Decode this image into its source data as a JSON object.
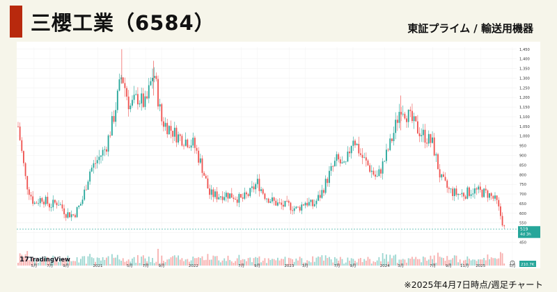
{
  "header": {
    "title": "三櫻工業（6584）",
    "market": "東証プライム / 輸送用機器",
    "accent_color": "#b8290d"
  },
  "footnote": "※2025年4月7日時点/週足チャート",
  "watermark": "TradingView",
  "colors": {
    "up": "#26a69a",
    "down": "#ef5350",
    "background": "#f6f5ea"
  },
  "chart_data": {
    "type": "candlestick",
    "interval": "weekly",
    "ylim": [
      430,
      1460
    ],
    "y_ticks": [
      450,
      500,
      550,
      600,
      650,
      700,
      750,
      800,
      850,
      900,
      950,
      1000,
      1050,
      1100,
      1150,
      1200,
      1250,
      1300,
      1350,
      1400,
      1450
    ],
    "y_tick_labels": [
      "450",
      "500",
      "550",
      "600",
      "650",
      "700",
      "750",
      "800",
      "850",
      "900",
      "950",
      "1,000",
      "1,050",
      "1,100",
      "1,150",
      "1,200",
      "1,250",
      "1,300",
      "1,350",
      "1,400",
      "1,450"
    ],
    "x_labels": [
      {
        "label": "5月",
        "x": "2020-05"
      },
      {
        "label": "7月",
        "x": "2020-07"
      },
      {
        "label": "9月",
        "x": "2020-09"
      },
      {
        "label": "2021",
        "x": "2021-01"
      },
      {
        "label": "5月",
        "x": "2021-05"
      },
      {
        "label": "7月",
        "x": "2021-07"
      },
      {
        "label": "9月",
        "x": "2021-09"
      },
      {
        "label": "2022",
        "x": "2022-01"
      },
      {
        "label": "7月",
        "x": "2022-07"
      },
      {
        "label": "9月",
        "x": "2022-09"
      },
      {
        "label": "2023",
        "x": "2023-01"
      },
      {
        "label": "3月",
        "x": "2023-03"
      },
      {
        "label": "7月",
        "x": "2023-07"
      },
      {
        "label": "9月",
        "x": "2023-09"
      },
      {
        "label": "2024",
        "x": "2024-01"
      },
      {
        "label": "3月",
        "x": "2024-03"
      },
      {
        "label": "7月",
        "x": "2024-07"
      },
      {
        "label": "9月",
        "x": "2024-09"
      },
      {
        "label": "11月",
        "x": "2024-11"
      },
      {
        "label": "2025",
        "x": "2025-01"
      },
      {
        "label": "5月",
        "x": "2025-05"
      }
    ],
    "x_start": "2020-03",
    "x_end": "2025-05",
    "path": [
      [
        "2020-03",
        1050
      ],
      [
        "2020-04",
        760
      ],
      [
        "2020-05",
        650
      ],
      [
        "2020-06",
        680
      ],
      [
        "2020-07",
        640
      ],
      [
        "2020-08",
        660
      ],
      [
        "2020-09",
        600
      ],
      [
        "2020-10",
        590
      ],
      [
        "2020-11",
        660
      ],
      [
        "2020-12",
        820
      ],
      [
        "2021-01",
        880
      ],
      [
        "2021-02",
        940
      ],
      [
        "2021-03",
        1100
      ],
      [
        "2021-04",
        1320
      ],
      [
        "2021-05",
        1150
      ],
      [
        "2021-06",
        1200
      ],
      [
        "2021-07",
        1160
      ],
      [
        "2021-08",
        1340
      ],
      [
        "2021-09",
        1080
      ],
      [
        "2021-10",
        1040
      ],
      [
        "2021-11",
        1000
      ],
      [
        "2021-12",
        980
      ],
      [
        "2022-01",
        960
      ],
      [
        "2022-02",
        850
      ],
      [
        "2022-03",
        700
      ],
      [
        "2022-04",
        690
      ],
      [
        "2022-05",
        700
      ],
      [
        "2022-06",
        690
      ],
      [
        "2022-07",
        670
      ],
      [
        "2022-08",
        700
      ],
      [
        "2022-09",
        760
      ],
      [
        "2022-10",
        690
      ],
      [
        "2022-11",
        660
      ],
      [
        "2022-12",
        640
      ],
      [
        "2023-01",
        640
      ],
      [
        "2023-02",
        620
      ],
      [
        "2023-03",
        660
      ],
      [
        "2023-04",
        640
      ],
      [
        "2023-05",
        700
      ],
      [
        "2023-06",
        800
      ],
      [
        "2023-07",
        880
      ],
      [
        "2023-08",
        830
      ],
      [
        "2023-09",
        1000
      ],
      [
        "2023-10",
        900
      ],
      [
        "2023-11",
        840
      ],
      [
        "2023-12",
        780
      ],
      [
        "2024-01",
        880
      ],
      [
        "2024-02",
        1000
      ],
      [
        "2024-03",
        1160
      ],
      [
        "2024-04",
        1100
      ],
      [
        "2024-05",
        1040
      ],
      [
        "2024-06",
        1000
      ],
      [
        "2024-07",
        960
      ],
      [
        "2024-08",
        780
      ],
      [
        "2024-09",
        720
      ],
      [
        "2024-10",
        700
      ],
      [
        "2024-11",
        700
      ],
      [
        "2024-12",
        720
      ],
      [
        "2025-01",
        710
      ],
      [
        "2025-02",
        700
      ],
      [
        "2025-03",
        660
      ],
      [
        "2025-04",
        519
      ]
    ],
    "last_price": {
      "label": "519",
      "sublabel": "4d 3h",
      "value": 519
    },
    "volume_label": "210.7K",
    "spikes": [
      [
        "2021-04",
        1450
      ],
      [
        "2021-08",
        1390
      ],
      [
        "2024-03",
        1210
      ]
    ]
  }
}
